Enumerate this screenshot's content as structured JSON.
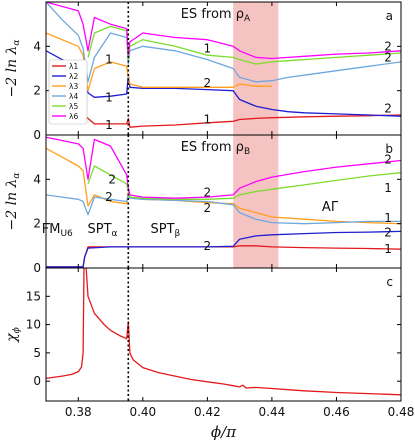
{
  "chart_data": {
    "type": "line",
    "x_range": [
      0.37,
      0.48
    ],
    "x_ticks": [
      "0.38",
      "0.40",
      "0.42",
      "0.44",
      "0.46",
      "0.48"
    ],
    "x_tick_values": [
      0.38,
      0.4,
      0.42,
      0.44,
      0.46,
      0.48
    ],
    "xlabel": "ϕ/π",
    "dotted_line_x": 0.3955,
    "shaded_region": [
      0.428,
      0.442
    ],
    "shade_color": "#f4b8b8",
    "series_colors": {
      "λ1": "#e41a1c",
      "λ2": "#1f1fd0",
      "λ3": "#ff9f1a",
      "λ4": "#6fa8dc",
      "λ5": "#7cdc2c",
      "λ6": "#ff00ff"
    },
    "panels": [
      {
        "id": "a",
        "label": "a",
        "title": "ES from ρ_A",
        "ylabel": "−2 ln λα",
        "ylim": [
          0,
          6
        ],
        "y_ticks": [
          "0",
          "2",
          "4"
        ],
        "y_tick_values": [
          0,
          2,
          4
        ],
        "legend": [
          "λ1",
          "λ2",
          "λ3",
          "λ4",
          "λ5",
          "λ6"
        ],
        "annotations": [
          {
            "text": "1",
            "x": 0.3895,
            "y": 3.4
          },
          {
            "text": "1",
            "x": 0.3895,
            "y": 1.7
          },
          {
            "text": "1",
            "x": 0.3895,
            "y": 0.45
          },
          {
            "text": "1",
            "x": 0.42,
            "y": 3.9
          },
          {
            "text": "2",
            "x": 0.42,
            "y": 2.35
          },
          {
            "text": "1",
            "x": 0.42,
            "y": 0.7
          },
          {
            "text": "2",
            "x": 0.476,
            "y": 4.0
          },
          {
            "text": "2",
            "x": 0.476,
            "y": 3.5
          },
          {
            "text": "2",
            "x": 0.476,
            "y": 1.2
          }
        ],
        "series": [
          {
            "name": "λ1",
            "x": [
              0.37,
              0.3815,
              0.382,
              0.383,
              0.385,
              0.39,
              0.395,
              0.3955,
              0.396,
              0.4,
              0.41,
              0.42,
              0.428,
              0.43,
              0.435,
              0.44,
              0.445,
              0.45,
              0.46,
              0.47,
              0.48
            ],
            "y": [
              null,
              null,
              0.9,
              0.75,
              0.5,
              0.5,
              0.5,
              0.75,
              0.35,
              0.4,
              0.45,
              0.55,
              0.62,
              0.7,
              0.75,
              0.78,
              0.8,
              0.82,
              0.85,
              0.87,
              0.9
            ]
          },
          {
            "name": "λ2",
            "x": [
              0.37,
              0.375,
              0.38,
              0.3815,
              0.383,
              0.385,
              0.39,
              0.395,
              0.3955,
              0.396,
              0.4,
              0.41,
              0.42,
              0.428,
              0.43,
              0.435,
              0.44,
              0.445,
              0.45,
              0.46,
              0.47,
              0.48
            ],
            "y": [
              3.8,
              3.4,
              3.0,
              2.9,
              1.9,
              1.7,
              1.75,
              1.85,
              2.7,
              2.15,
              2.1,
              2.1,
              2.05,
              2.0,
              1.6,
              1.3,
              1.15,
              1.05,
              1.0,
              0.95,
              0.9,
              0.85
            ]
          },
          {
            "name": "λ3",
            "x": [
              0.37,
              0.375,
              0.38,
              0.3815,
              0.383,
              0.385,
              0.39,
              0.395,
              0.3955,
              0.396,
              0.4,
              0.41,
              0.42,
              0.428,
              0.43,
              0.435,
              0.44
            ],
            "y": [
              4.6,
              4.3,
              4.0,
              3.6,
              2.0,
              3.0,
              3.3,
              3.1,
              2.6,
              2.3,
              2.15,
              2.15,
              2.15,
              2.15,
              2.3,
              2.2,
              2.2
            ]
          },
          {
            "name": "λ4",
            "x": [
              0.37,
              0.375,
              0.38,
              0.3815,
              0.383,
              0.385,
              0.39,
              0.395,
              0.3955,
              0.396,
              0.4,
              0.41,
              0.42,
              0.428,
              0.43,
              0.435,
              0.44,
              0.445,
              0.45,
              0.46,
              0.47,
              0.48
            ],
            "y": [
              6.0,
              5.2,
              4.5,
              3.9,
              2.4,
              3.5,
              4.6,
              4.4,
              3.2,
              3.8,
              4.0,
              3.8,
              3.4,
              3.0,
              2.6,
              2.4,
              2.45,
              2.6,
              2.7,
              2.9,
              3.1,
              3.3
            ]
          },
          {
            "name": "λ5",
            "x": [
              0.383,
              0.385,
              0.39,
              0.395,
              0.3955,
              0.396,
              0.4,
              0.41,
              0.42,
              0.428,
              0.43,
              0.435,
              0.44,
              0.445,
              0.45,
              0.46,
              0.47,
              0.48
            ],
            "y": [
              3.5,
              4.6,
              4.9,
              4.7,
              3.4,
              4.0,
              4.3,
              4.0,
              3.6,
              3.5,
              3.4,
              3.2,
              3.3,
              3.35,
              3.4,
              3.5,
              3.6,
              3.7
            ]
          },
          {
            "name": "λ6",
            "x": [
              0.37,
              0.38,
              0.3815,
              0.383,
              0.385,
              0.39,
              0.395,
              0.3955,
              0.396,
              0.4,
              0.41,
              0.42,
              0.428,
              0.43,
              0.435,
              0.44,
              0.445,
              0.45,
              0.46,
              0.47,
              0.48
            ],
            "y": [
              6.0,
              5.6,
              5.0,
              3.8,
              5.3,
              5.0,
              4.8,
              3.6,
              4.2,
              4.6,
              4.4,
              4.3,
              4.0,
              3.8,
              3.5,
              3.45,
              3.5,
              3.55,
              3.65,
              3.7,
              3.8
            ]
          }
        ]
      },
      {
        "id": "b",
        "label": "b",
        "title": "ES from ρ_B",
        "ylabel": "−2 ln λα",
        "ylim": [
          0,
          6
        ],
        "y_ticks": [
          "0",
          "2",
          "4"
        ],
        "y_tick_values": [
          0,
          2,
          4
        ],
        "phase_labels": [
          {
            "text": "FM",
            "sub": "U6",
            "x": 0.3735,
            "y": 1.8
          },
          {
            "text": "SPT",
            "sub": "α",
            "x": 0.3875,
            "y": 1.8
          },
          {
            "text": "SPT",
            "sub": "β",
            "x": 0.407,
            "y": 1.8
          },
          {
            "text": "AΓ",
            "sub": "",
            "x": 0.458,
            "y": 2.8
          }
        ],
        "annotations": [
          {
            "text": "2",
            "x": 0.3905,
            "y": 4.0
          },
          {
            "text": "2",
            "x": 0.3895,
            "y": 3.2
          },
          {
            "text": "2",
            "x": 0.42,
            "y": 3.4
          },
          {
            "text": "2",
            "x": 0.42,
            "y": 2.7
          },
          {
            "text": "2",
            "x": 0.42,
            "y": 1.0
          },
          {
            "text": "2",
            "x": 0.476,
            "y": 4.9
          },
          {
            "text": "1",
            "x": 0.476,
            "y": 3.6
          },
          {
            "text": "1",
            "x": 0.476,
            "y": 2.25
          },
          {
            "text": "2",
            "x": 0.476,
            "y": 1.6
          },
          {
            "text": "1",
            "x": 0.476,
            "y": 0.85
          }
        ],
        "series": [
          {
            "name": "λ1",
            "x": [
              0.37,
              0.3815,
              0.382,
              0.383,
              0.39,
              0.395,
              0.3955,
              0.396,
              0.4,
              0.41,
              0.42,
              0.428,
              0.43,
              0.435,
              0.44,
              0.45,
              0.46,
              0.47,
              0.48
            ],
            "y": [
              0.05,
              0.05,
              0.5,
              0.95,
              0.95,
              0.95,
              0.95,
              0.95,
              0.95,
              0.95,
              0.95,
              0.95,
              1.0,
              1.0,
              0.95,
              0.92,
              0.9,
              0.88,
              0.85
            ]
          },
          {
            "name": "λ2",
            "x": [
              0.37,
              0.3815,
              0.382,
              0.383,
              0.39,
              0.395,
              0.3955,
              0.396,
              0.4,
              0.41,
              0.42,
              0.428,
              0.43,
              0.435,
              0.44,
              0.45,
              0.46,
              0.47,
              0.48
            ],
            "y": [
              0.05,
              0.05,
              0.5,
              0.9,
              0.95,
              0.95,
              0.95,
              0.95,
              0.95,
              0.95,
              0.95,
              0.98,
              1.3,
              1.45,
              1.5,
              1.55,
              1.6,
              1.62,
              1.65
            ]
          },
          {
            "name": "λ3",
            "x": [
              0.37,
              0.375,
              0.38,
              0.3815,
              0.383,
              0.385,
              0.39,
              0.395,
              0.3955,
              0.396,
              0.4,
              0.41,
              0.42,
              0.428,
              0.43,
              0.435,
              0.44,
              0.45,
              0.46,
              0.47,
              0.48
            ],
            "y": [
              5.4,
              5.0,
              4.6,
              4.4,
              2.8,
              3.3,
              3.0,
              2.9,
              3.4,
              3.2,
              3.1,
              3.05,
              2.95,
              2.9,
              2.7,
              2.5,
              2.3,
              2.2,
              2.1,
              2.05,
              2.0
            ]
          },
          {
            "name": "λ4",
            "x": [
              0.37,
              0.375,
              0.38,
              0.3815,
              0.383,
              0.385,
              0.39,
              0.395,
              0.3955,
              0.396,
              0.4,
              0.41,
              0.42,
              0.428,
              0.43,
              0.435,
              0.44,
              0.45,
              0.46,
              0.47,
              0.48
            ],
            "y": [
              3.3,
              3.2,
              3.1,
              3.0,
              2.4,
              3.2,
              3.1,
              3.0,
              3.3,
              3.15,
              3.1,
              3.05,
              3.0,
              2.85,
              2.5,
              2.2,
              2.05,
              2.0,
              2.05,
              2.1,
              2.1
            ]
          },
          {
            "name": "λ5",
            "x": [
              0.383,
              0.385,
              0.39,
              0.395,
              0.3955,
              0.396,
              0.4,
              0.41,
              0.42,
              0.428,
              0.43,
              0.435,
              0.44,
              0.45,
              0.46,
              0.47,
              0.48
            ],
            "y": [
              3.8,
              4.6,
              4.2,
              3.8,
              3.5,
              3.2,
              3.15,
              3.1,
              3.1,
              3.15,
              3.3,
              3.45,
              3.55,
              3.75,
              3.95,
              4.15,
              4.3
            ]
          },
          {
            "name": "λ6",
            "x": [
              0.37,
              0.38,
              0.3815,
              0.383,
              0.385,
              0.39,
              0.395,
              0.3955,
              0.396,
              0.4,
              0.41,
              0.42,
              0.428,
              0.43,
              0.435,
              0.44,
              0.45,
              0.46,
              0.47,
              0.48
            ],
            "y": [
              5.9,
              5.6,
              5.4,
              4.0,
              5.8,
              5.5,
              4.2,
              3.6,
              3.3,
              3.2,
              3.15,
              3.2,
              3.3,
              3.6,
              3.9,
              4.1,
              4.35,
              4.55,
              4.7,
              4.85
            ]
          }
        ]
      },
      {
        "id": "c",
        "label": "c",
        "ylabel": "χᵉ_ϕ",
        "ylim": [
          -3.5,
          20
        ],
        "y_ticks": [
          "0",
          "5",
          "10",
          "15"
        ],
        "y_tick_values": [
          0,
          5,
          10,
          15
        ],
        "series": [
          {
            "name": "χ",
            "x": [
              0.37,
              0.375,
              0.378,
              0.38,
              0.381,
              0.3815,
              0.3818,
              0.3822,
              0.383,
              0.385,
              0.388,
              0.39,
              0.393,
              0.395,
              0.3955,
              0.396,
              0.397,
              0.4,
              0.405,
              0.41,
              0.415,
              0.42,
              0.425,
              0.428,
              0.43,
              0.431,
              0.432,
              0.435,
              0.44,
              0.445,
              0.45,
              0.46,
              0.47,
              0.48
            ],
            "y": [
              0.5,
              0.9,
              1.2,
              1.7,
              2.5,
              5.0,
              22.0,
              22.0,
              15.0,
              12.0,
              10.0,
              9.0,
              8.0,
              7.5,
              10.5,
              5.0,
              3.8,
              2.4,
              1.5,
              0.9,
              0.3,
              -0.1,
              -0.5,
              -0.8,
              -1.0,
              -0.7,
              -1.2,
              -1.1,
              -1.3,
              -1.5,
              -1.7,
              -2.0,
              -2.2,
              -2.4
            ]
          }
        ]
      }
    ]
  }
}
